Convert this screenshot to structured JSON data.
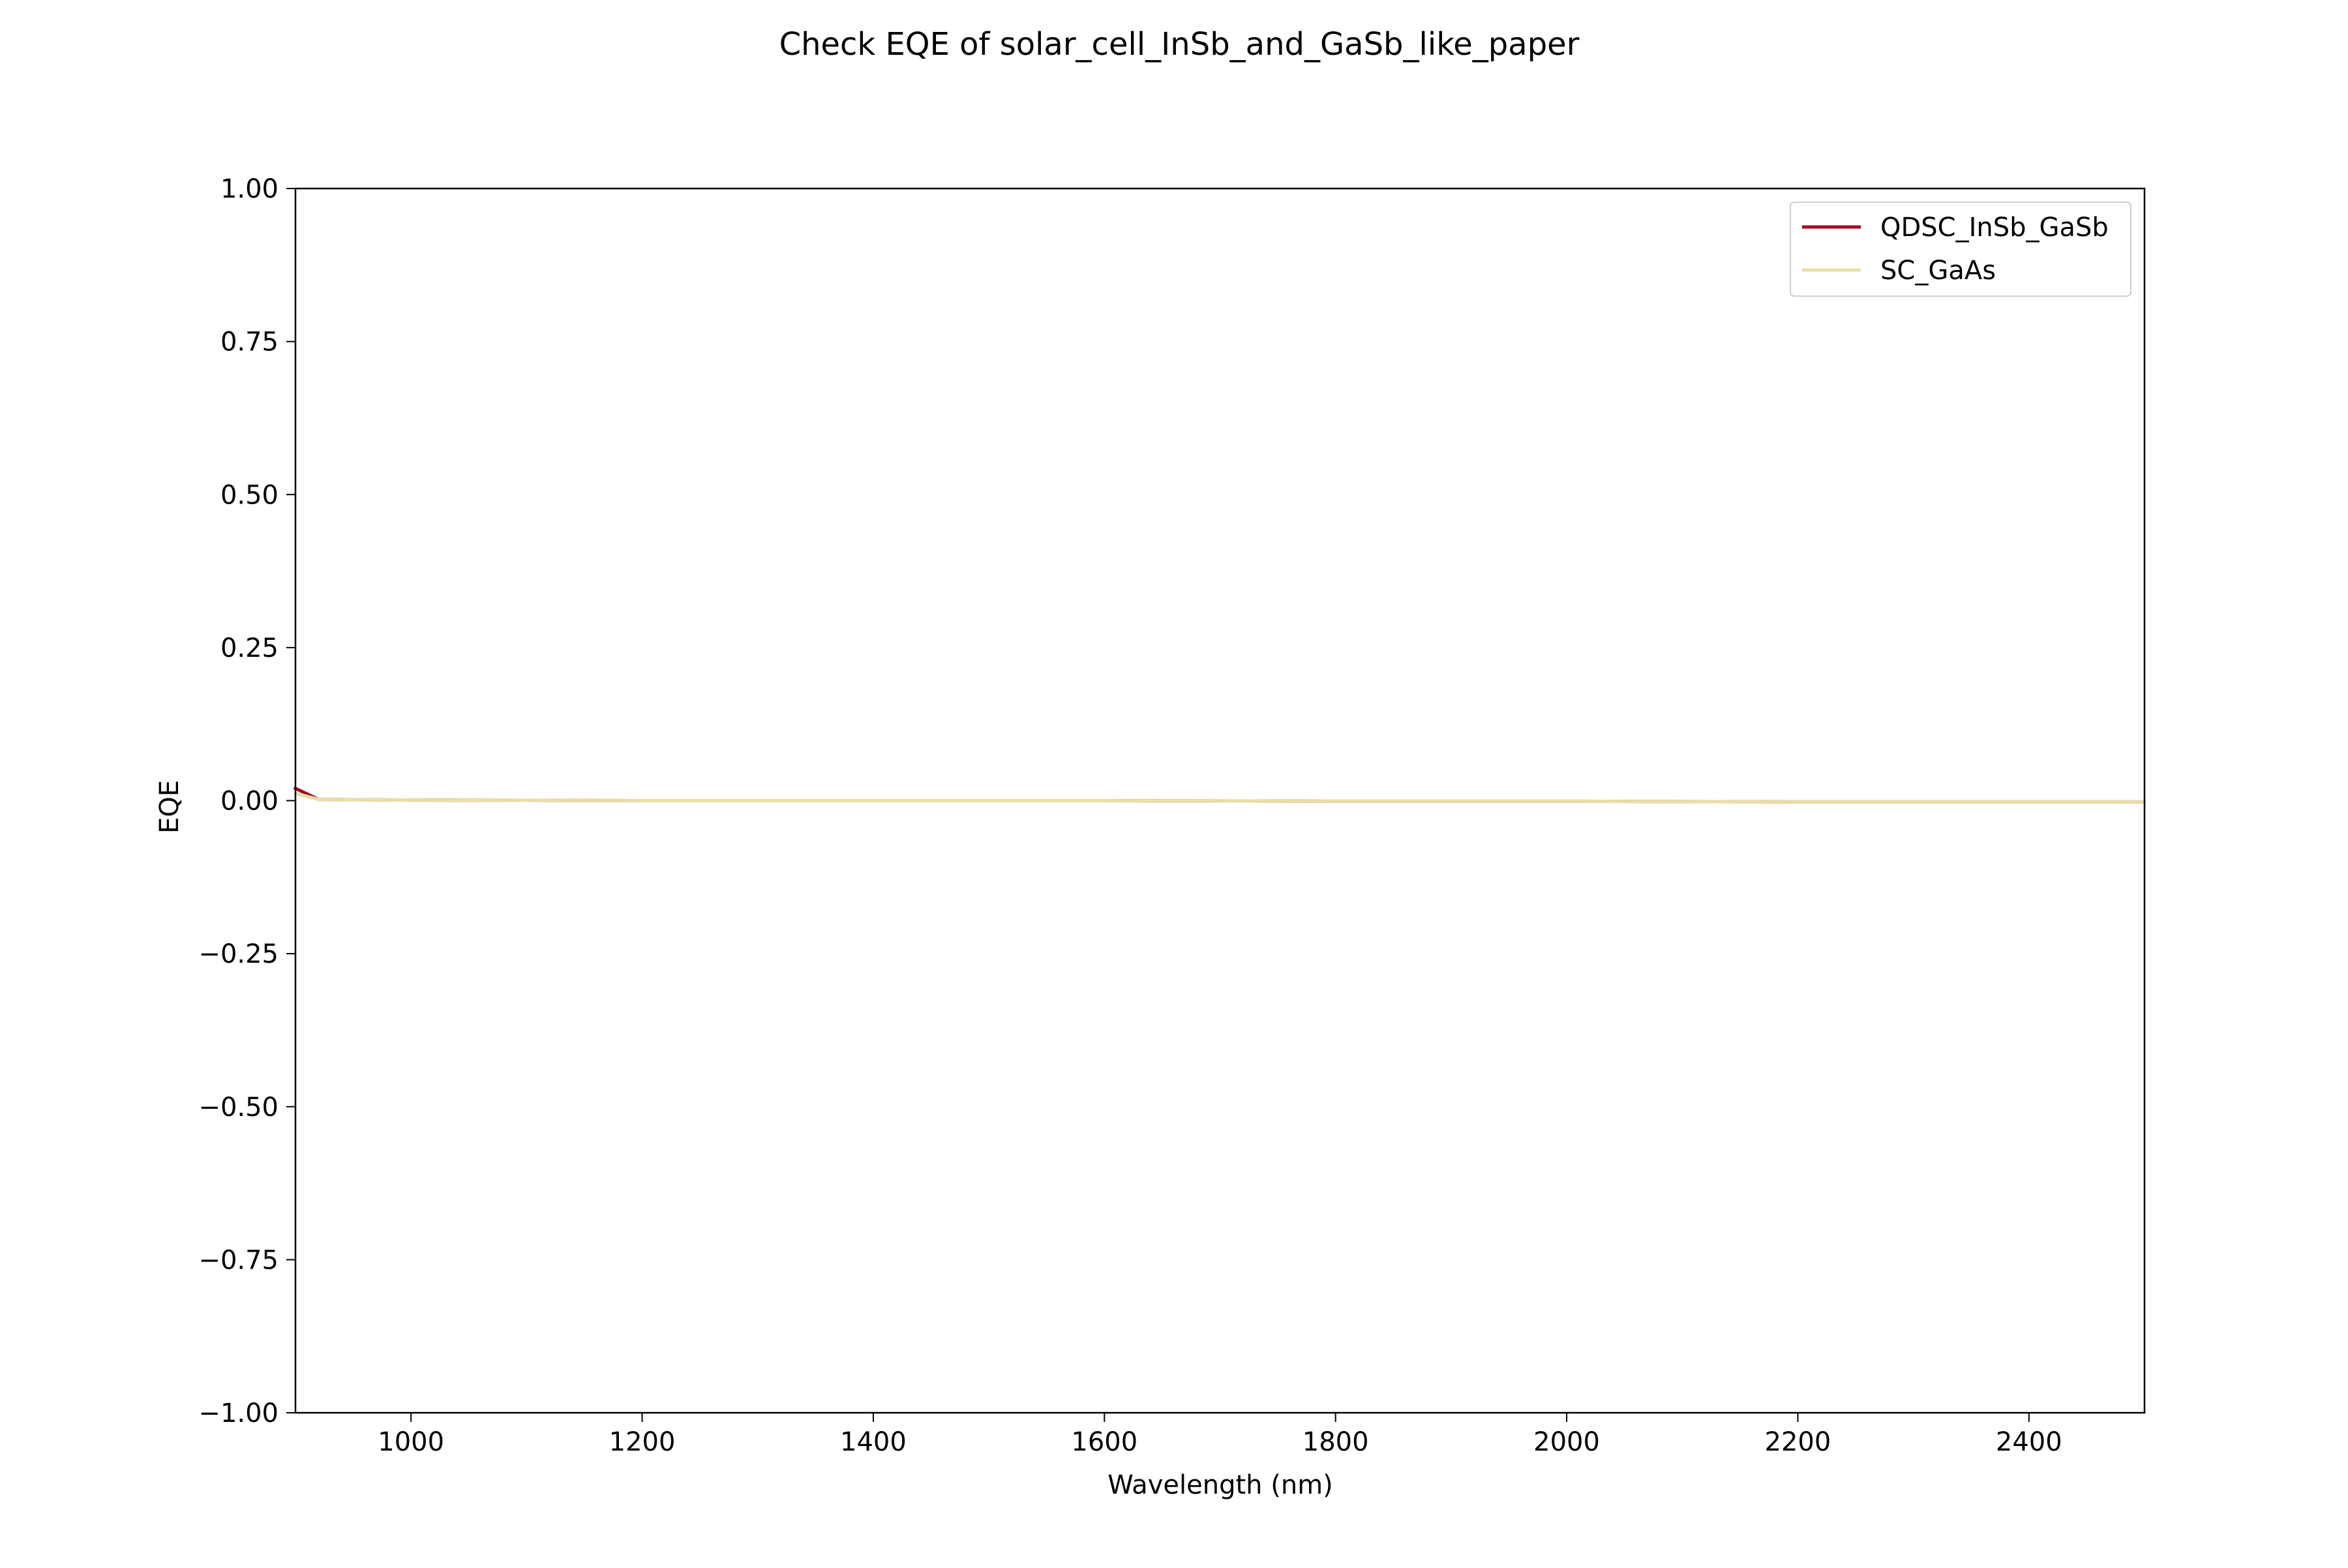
{
  "chart_data": {
    "type": "line",
    "title": "Check EQE of solar_cell_InSb_and_GaSb_like_paper",
    "xlabel": "Wavelength (nm)",
    "ylabel": "EQE",
    "xlim": [
      900,
      2500
    ],
    "ylim": [
      -1.0,
      1.0
    ],
    "xticks": [
      1000,
      1200,
      1400,
      1600,
      1800,
      2000,
      2200,
      2400
    ],
    "xtick_labels": [
      "1000",
      "1200",
      "1400",
      "1600",
      "1800",
      "2000",
      "2200",
      "2400"
    ],
    "yticks": [
      -1.0,
      -0.75,
      -0.5,
      -0.25,
      0.0,
      0.25,
      0.5,
      0.75,
      1.0
    ],
    "ytick_labels": [
      "−1.00",
      "−0.75",
      "−0.50",
      "−0.25",
      "0.00",
      "0.25",
      "0.50",
      "0.75",
      "1.00"
    ],
    "grid": false,
    "legend_position": "top-right",
    "series": [
      {
        "name": "QDSC_InSb_GaSb",
        "color": "#a50026",
        "x": [
          900,
          920,
          1000,
          1200,
          1400,
          1600,
          1800,
          2000,
          2200,
          2400,
          2500
        ],
        "y": [
          0.02,
          0.002,
          0.001,
          0.0,
          0.0,
          0.0,
          -0.001,
          -0.001,
          -0.002,
          -0.002,
          -0.002
        ]
      },
      {
        "name": "SC_GaAs",
        "color": "#e8dfa6",
        "x": [
          900,
          920,
          1000,
          1200,
          1400,
          1600,
          1800,
          2000,
          2200,
          2400,
          2500
        ],
        "y": [
          0.012,
          0.002,
          0.001,
          0.0,
          0.0,
          0.0,
          -0.001,
          -0.001,
          -0.002,
          -0.002,
          -0.002
        ]
      }
    ]
  }
}
